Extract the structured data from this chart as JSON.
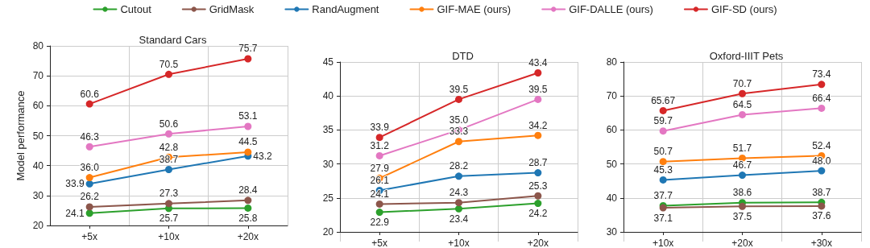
{
  "chart_data": [
    {
      "type": "line",
      "title": "Standard Cars",
      "ylabel": "Model performance",
      "categories": [
        "+5x",
        "+10x",
        "+20x"
      ],
      "ylim": [
        20,
        80
      ],
      "yticks": [
        20,
        30,
        40,
        50,
        60,
        70,
        80
      ],
      "grid": true,
      "legend": "top",
      "marker": "circle",
      "line_style": "solid",
      "data_labels": true,
      "series": [
        {
          "name": "Cutout",
          "color": "#2ca02c",
          "values": [
            24.1,
            25.7,
            25.8
          ]
        },
        {
          "name": "GridMask",
          "color": "#8c564b",
          "values": [
            26.2,
            27.3,
            28.4
          ]
        },
        {
          "name": "RandAugment",
          "color": "#1f77b4",
          "values": [
            33.9,
            38.7,
            43.2
          ]
        },
        {
          "name": "GIF-MAE (ours)",
          "color": "#ff7f0e",
          "values": [
            36.0,
            42.8,
            44.5
          ],
          "value_labels": [
            "36.0",
            "42.8",
            "44.5"
          ]
        },
        {
          "name": "GIF-DALLE (ours)",
          "color": "#e377c2",
          "values": [
            46.3,
            50.6,
            53.1
          ]
        },
        {
          "name": "GIF-SD (ours)",
          "color": "#d62728",
          "values": [
            60.6,
            70.5,
            75.7
          ]
        }
      ]
    },
    {
      "type": "line",
      "title": "DTD",
      "categories": [
        "+5x",
        "+10x",
        "+20x"
      ],
      "ylim": [
        20,
        45
      ],
      "yticks": [
        20,
        25,
        30,
        35,
        40,
        45
      ],
      "grid": true,
      "marker": "circle",
      "line_style": "solid",
      "data_labels": true,
      "series": [
        {
          "color": "#2ca02c",
          "values": [
            22.9,
            23.4,
            24.2
          ]
        },
        {
          "color": "#8c564b",
          "values": [
            24.1,
            24.3,
            25.3
          ]
        },
        {
          "color": "#1f77b4",
          "values": [
            26.1,
            28.2,
            28.7
          ]
        },
        {
          "color": "#ff7f0e",
          "values": [
            27.9,
            33.3,
            34.2
          ]
        },
        {
          "color": "#e377c2",
          "values": [
            31.2,
            35.0,
            39.5
          ],
          "value_labels": [
            "31.2",
            "35.0",
            "39.5"
          ]
        },
        {
          "color": "#d62728",
          "values": [
            33.9,
            39.5,
            43.4
          ]
        }
      ]
    },
    {
      "type": "line",
      "title": "Oxford-IIIT Pets",
      "categories": [
        "+10x",
        "+20x",
        "+30x"
      ],
      "ylim": [
        30,
        80
      ],
      "yticks": [
        30,
        40,
        50,
        60,
        70,
        80
      ],
      "grid": true,
      "marker": "circle",
      "line_style": "solid",
      "data_labels": true,
      "series": [
        {
          "color": "#2ca02c",
          "values": [
            37.7,
            38.6,
            38.7
          ]
        },
        {
          "color": "#8c564b",
          "values": [
            37.1,
            37.5,
            37.6
          ]
        },
        {
          "color": "#1f77b4",
          "values": [
            45.3,
            46.7,
            48.0
          ],
          "value_labels": [
            "45.3",
            "46.7",
            "48.0"
          ]
        },
        {
          "color": "#ff7f0e",
          "values": [
            50.7,
            51.7,
            52.4
          ]
        },
        {
          "color": "#e377c2",
          "values": [
            59.7,
            64.5,
            66.4
          ]
        },
        {
          "color": "#d62728",
          "values": [
            65.67,
            70.7,
            73.4
          ]
        }
      ]
    }
  ]
}
